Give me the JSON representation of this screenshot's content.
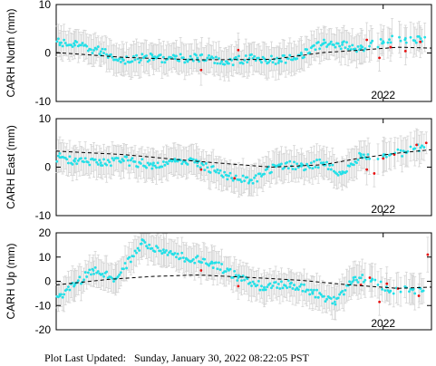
{
  "footer": {
    "prefix": "Plot Last Updated:",
    "timestamp": "Sunday, January 30, 2022 08:22:05 PST"
  },
  "colors": {
    "points": "#22e0e8",
    "recent_points": "#e81010",
    "error_bars": "#d4d4d4",
    "trend": "#000000"
  },
  "chart_data": [
    {
      "type": "scatter",
      "title": "",
      "xlabel": "",
      "ylabel": "CARH North (mm)",
      "xlim": [
        2017.6,
        2022.65
      ],
      "ylim": [
        -10,
        10
      ],
      "yticks": [
        -10,
        0,
        10
      ],
      "xticks": [
        {
          "value": 2022.0,
          "label": "2022"
        }
      ],
      "recent_start": 2021.72,
      "trend": {
        "x": [
          2017.6,
          2018.5,
          2019.5,
          2020.5,
          2021.2,
          2021.7,
          2022.2,
          2022.65
        ],
        "y": [
          0.1,
          -0.9,
          -1.4,
          -1.3,
          0.1,
          0.6,
          1.2,
          1.0
        ]
      },
      "series": [
        {
          "color": "cyan",
          "x": [
            2017.65,
            2017.85,
            2018.2,
            2018.5,
            2018.9,
            2019.2,
            2019.5,
            2019.9,
            2020.2,
            2020.6,
            2020.9,
            2021.2,
            2021.45,
            2021.7,
            2022.0,
            2022.3
          ],
          "y": [
            2.1,
            1.6,
            0.3,
            -1.5,
            -0.9,
            -1.2,
            -1.0,
            -1.8,
            -1.1,
            -1.6,
            -0.3,
            2.0,
            1.7,
            0.9,
            2.4,
            3.0
          ]
        },
        {
          "color": "red",
          "x": [
            2019.55,
            2020.05,
            2021.78,
            2021.95,
            2022.1,
            2022.3,
            2022.5
          ],
          "y": [
            -3.5,
            0.6,
            2.7,
            -1.0,
            1.2,
            0.4,
            2.3
          ]
        }
      ]
    },
    {
      "type": "scatter",
      "title": "",
      "xlabel": "",
      "ylabel": "CARH East (mm)",
      "xlim": [
        2017.6,
        2022.65
      ],
      "ylim": [
        -10,
        10
      ],
      "yticks": [
        -10,
        0,
        10
      ],
      "xticks": [
        {
          "value": 2022.0,
          "label": "2022"
        }
      ],
      "recent_start": 2021.72,
      "trend": {
        "x": [
          2017.6,
          2018.5,
          2019.5,
          2020.5,
          2021.2,
          2021.7,
          2022.2,
          2022.65
        ],
        "y": [
          3.3,
          2.6,
          1.2,
          0.0,
          0.5,
          1.9,
          2.9,
          3.6
        ]
      },
      "series": [
        {
          "color": "cyan",
          "x": [
            2017.65,
            2017.85,
            2018.2,
            2018.5,
            2018.9,
            2019.2,
            2019.5,
            2019.9,
            2020.2,
            2020.6,
            2020.9,
            2021.2,
            2021.45,
            2021.7,
            2022.0,
            2022.3,
            2022.55
          ],
          "y": [
            2.0,
            1.2,
            0.9,
            1.4,
            0.4,
            1.2,
            0.9,
            -1.7,
            -3.0,
            0.5,
            0.2,
            0.9,
            -1.3,
            2.3,
            2.2,
            3.1,
            4.1
          ]
        },
        {
          "color": "red",
          "x": [
            2019.55,
            2020.0,
            2021.78,
            2021.88,
            2022.0,
            2022.15,
            2022.45,
            2022.58
          ],
          "y": [
            -0.5,
            -2.3,
            -0.5,
            -1.3,
            1.8,
            2.6,
            4.6,
            5.0
          ]
        }
      ]
    },
    {
      "type": "scatter",
      "title": "",
      "xlabel": "",
      "ylabel": "CARH Up (mm)",
      "xlim": [
        2017.6,
        2022.65
      ],
      "ylim": [
        -20,
        20
      ],
      "yticks": [
        -20,
        -10,
        0,
        10,
        20
      ],
      "xticks": [
        {
          "value": 2022.0,
          "label": "2022"
        }
      ],
      "recent_start": 2021.72,
      "trend": {
        "x": [
          2017.6,
          2018.3,
          2018.9,
          2019.5,
          2020.2,
          2020.9,
          2021.5,
          2022.2,
          2022.65
        ],
        "y": [
          -1.5,
          0.8,
          2.0,
          2.6,
          1.6,
          0.4,
          -1.4,
          -2.9,
          -2.4
        ]
      },
      "series": [
        {
          "color": "cyan",
          "x": [
            2017.65,
            2017.85,
            2018.1,
            2018.4,
            2018.75,
            2019.05,
            2019.35,
            2019.7,
            2020.05,
            2020.4,
            2020.75,
            2021.05,
            2021.35,
            2021.6,
            2021.85,
            2022.1,
            2022.4
          ],
          "y": [
            -6,
            -1.5,
            4.5,
            1.0,
            15.5,
            12.0,
            9.5,
            7.5,
            1.5,
            -2.5,
            -1.0,
            -4.5,
            -8.5,
            1.5,
            0.5,
            -4.0,
            -3.5
          ]
        },
        {
          "color": "red",
          "x": [
            2019.55,
            2020.05,
            2021.7,
            2021.82,
            2021.95,
            2022.05,
            2022.2,
            2022.48,
            2022.6
          ],
          "y": [
            4.5,
            -2.0,
            -1.5,
            1.5,
            -8.5,
            -1.0,
            -3.0,
            -6.0,
            11.0
          ]
        }
      ]
    }
  ]
}
